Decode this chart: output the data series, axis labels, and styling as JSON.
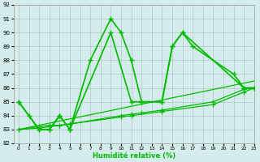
{
  "line1_x": [
    0,
    1,
    2,
    3,
    4,
    5,
    7,
    9,
    10,
    11,
    12,
    14,
    15,
    16,
    17,
    21,
    22,
    23
  ],
  "line1_y": [
    85,
    84,
    83,
    83,
    84,
    83,
    88,
    91,
    90,
    88,
    85,
    85,
    89,
    90,
    89,
    87,
    86,
    86
  ],
  "line2_x": [
    0,
    2,
    3,
    4,
    5,
    9,
    11,
    12,
    14,
    15,
    16,
    22,
    23
  ],
  "line2_y": [
    85,
    83,
    83,
    84,
    83,
    90,
    85,
    85,
    85,
    89,
    90,
    86,
    86
  ],
  "trend1_x": [
    0,
    23
  ],
  "trend1_y": [
    83.0,
    86.5
  ],
  "trend2_x": [
    0,
    2,
    3,
    4,
    5,
    10,
    11,
    12,
    14,
    19,
    22,
    23
  ],
  "trend2_y": [
    83.0,
    83.1,
    83.2,
    83.3,
    83.4,
    84.0,
    84.1,
    84.2,
    84.4,
    85.0,
    85.9,
    86.0
  ],
  "trend3_x": [
    0,
    2,
    3,
    4,
    5,
    10,
    11,
    14,
    19,
    22,
    23
  ],
  "trend3_y": [
    83.0,
    83.2,
    83.3,
    83.3,
    83.4,
    83.9,
    84.0,
    84.3,
    84.8,
    85.7,
    86.0
  ],
  "xlabel": "Humidité relative (%)",
  "ylim": [
    82,
    92
  ],
  "xlim": [
    -0.5,
    23
  ],
  "yticks": [
    82,
    83,
    84,
    85,
    86,
    87,
    88,
    89,
    90,
    91,
    92
  ],
  "xticks": [
    0,
    1,
    2,
    3,
    4,
    5,
    6,
    7,
    8,
    9,
    10,
    11,
    12,
    13,
    14,
    15,
    16,
    17,
    18,
    19,
    20,
    21,
    22,
    23
  ],
  "line_color": "#00bb00",
  "bg_color": "#d4ecec",
  "grid_color": "#999999"
}
